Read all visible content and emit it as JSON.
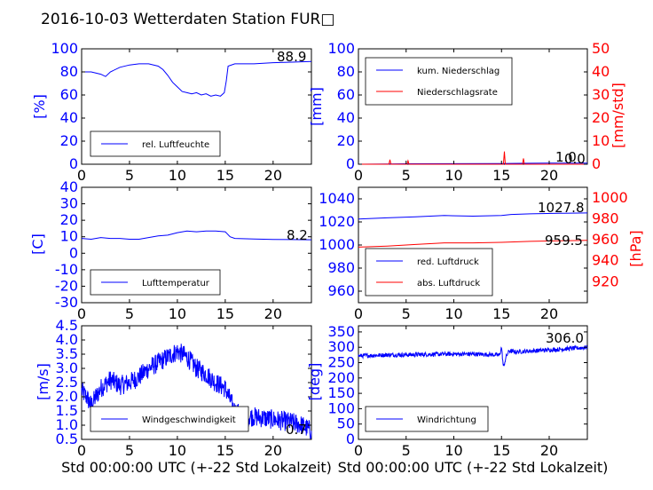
{
  "title": "2016-10-03 Wetterdaten Station FUR□",
  "colors": {
    "primary": "#0000ff",
    "secondary": "#ff0000"
  },
  "chart_data": [
    {
      "id": "humidity",
      "type": "line",
      "ylabel": "[%]",
      "ylim": [
        0,
        100
      ],
      "yticks": [
        0,
        20,
        40,
        60,
        80,
        100
      ],
      "xlim": [
        0,
        24
      ],
      "xticks": [
        0,
        5,
        10,
        15,
        20
      ],
      "last_value": "88.9",
      "series": [
        {
          "name": "rel. Luftfeuchte",
          "color": "#0000ff",
          "x": [
            0,
            1,
            2,
            2.5,
            3,
            4,
            5,
            6,
            7,
            8,
            8.5,
            9,
            9.5,
            10,
            10.5,
            11,
            11.5,
            12,
            12.5,
            13,
            13.5,
            14,
            14.5,
            14.9,
            15.1,
            15.3,
            16,
            18,
            20,
            22,
            24
          ],
          "y": [
            80,
            80,
            78,
            76,
            80,
            84,
            86,
            87,
            87,
            85,
            82,
            77,
            71,
            67,
            63,
            62,
            61,
            62,
            60,
            61,
            59,
            60,
            59,
            62,
            72,
            85,
            87,
            87,
            88,
            88.5,
            89
          ]
        }
      ]
    },
    {
      "id": "precipitation",
      "type": "line",
      "ylabel": "[mm]",
      "ylabel_right": "[mm/std]",
      "ylim": [
        0,
        100
      ],
      "ylim_right": [
        0,
        50
      ],
      "yticks": [
        0,
        20,
        40,
        60,
        80,
        100
      ],
      "yticks_right": [
        0,
        10,
        20,
        30,
        40,
        50
      ],
      "xlim": [
        0,
        24
      ],
      "xticks": [
        0,
        5,
        10,
        15,
        20
      ],
      "last_value": "1.0",
      "last_value_right": "0.0",
      "series": [
        {
          "name": "kum. Niederschlag",
          "color": "#0000ff",
          "axis": "left",
          "x": [
            0,
            3,
            5,
            15,
            17,
            20,
            24
          ],
          "y": [
            0,
            0.2,
            0.4,
            0.6,
            0.8,
            1.0,
            1.0
          ]
        },
        {
          "name": "Niederschlagsrate",
          "color": "#ff0000",
          "axis": "right",
          "x": [
            0,
            3.2,
            3.3,
            3.4,
            5.1,
            5.2,
            5.3,
            15.2,
            15.3,
            15.4,
            17.2,
            17.3,
            17.4,
            24
          ],
          "y": [
            0,
            0,
            2,
            0,
            0,
            1.5,
            0,
            0,
            5.5,
            0,
            0,
            2.5,
            0,
            0
          ]
        }
      ]
    },
    {
      "id": "temperature",
      "type": "line",
      "ylabel": "[C]",
      "ylim": [
        -30,
        40
      ],
      "yticks": [
        -30,
        -20,
        -10,
        0,
        10,
        20,
        30,
        40
      ],
      "xlim": [
        0,
        24
      ],
      "xticks": [
        0,
        5,
        10,
        15,
        20
      ],
      "last_value": "8.2",
      "series": [
        {
          "name": "Lufttemperatur",
          "color": "#0000ff",
          "x": [
            0,
            1,
            2,
            3,
            4,
            5,
            6,
            7,
            8,
            9,
            10,
            11,
            12,
            13,
            14,
            15,
            15.5,
            16,
            18,
            20,
            22,
            24
          ],
          "y": [
            9,
            8.5,
            9.5,
            9,
            9,
            8.5,
            8.5,
            9.5,
            10.5,
            11,
            12.5,
            13.5,
            13,
            13.5,
            13.5,
            13,
            10,
            9,
            8.6,
            8.4,
            8.3,
            8.2
          ]
        }
      ]
    },
    {
      "id": "pressure",
      "type": "line",
      "ylabel_right": "[hPa]",
      "ylim": [
        950,
        1050
      ],
      "ylim_right": [
        900,
        1010
      ],
      "yticks": [
        960,
        980,
        1000,
        1020,
        1040
      ],
      "yticks_right": [
        920,
        940,
        960,
        980,
        1000
      ],
      "xlim": [
        0,
        24
      ],
      "xticks": [
        0,
        5,
        10,
        15,
        20
      ],
      "last_value": "1027.8",
      "last_value_right": "959.5",
      "series": [
        {
          "name": "red. Luftdruck",
          "color": "#0000ff",
          "axis": "left",
          "x": [
            0,
            3,
            6,
            9,
            12,
            15,
            16,
            18,
            21,
            24
          ],
          "y": [
            1022.5,
            1023.5,
            1024.5,
            1025.5,
            1025,
            1025.5,
            1026.5,
            1027,
            1027.5,
            1027.8
          ]
        },
        {
          "name": "abs. Luftdruck",
          "color": "#ff0000",
          "axis": "right",
          "x": [
            0,
            3,
            6,
            9,
            12,
            15,
            18,
            21,
            24
          ],
          "y": [
            953,
            954,
            955.5,
            957,
            957,
            957.5,
            958.5,
            959,
            959.5
          ]
        }
      ]
    },
    {
      "id": "windspeed",
      "type": "line",
      "ylabel": "[m/s]",
      "xlabel": "Std 00:00:00 UTC (+-22 Std Lokalzeit)",
      "ylim": [
        0.5,
        4.5
      ],
      "yticks": [
        0.5,
        1.0,
        1.5,
        2.0,
        2.5,
        3.0,
        3.5,
        4.0,
        4.5
      ],
      "xlim": [
        0,
        24
      ],
      "xticks": [
        0,
        5,
        10,
        15,
        20
      ],
      "last_value": "0.7",
      "noise": 0.35,
      "series": [
        {
          "name": "Windgeschwindigkeit",
          "color": "#0000ff",
          "x": [
            0,
            0.5,
            1,
            2,
            3,
            4,
            5,
            6,
            7,
            8,
            9,
            10,
            11,
            12,
            13,
            14,
            15,
            16,
            17,
            18,
            20,
            22,
            23,
            24
          ],
          "y": [
            2.2,
            2.0,
            1.7,
            2.3,
            2.6,
            2.4,
            2.5,
            2.7,
            3.0,
            3.2,
            3.4,
            3.6,
            3.4,
            3.0,
            2.8,
            2.5,
            2.3,
            1.5,
            1.3,
            1.3,
            1.2,
            1.1,
            1.0,
            0.8
          ]
        }
      ]
    },
    {
      "id": "winddirection",
      "type": "line",
      "ylabel": "[deg]",
      "xlabel": "Std 00:00:00 UTC (+-22 Std Lokalzeit)",
      "ylim": [
        0,
        370
      ],
      "yticks": [
        0,
        50,
        100,
        150,
        200,
        250,
        300,
        350
      ],
      "xlim": [
        0,
        24
      ],
      "xticks": [
        0,
        5,
        10,
        15,
        20
      ],
      "last_value": "306.0",
      "noise": 7,
      "series": [
        {
          "name": "Windrichtung",
          "color": "#0000ff",
          "x": [
            0,
            3,
            6,
            9,
            12,
            14.8,
            15.0,
            15.2,
            15.5,
            15.8,
            16.5,
            18,
            21,
            24
          ],
          "y": [
            272,
            275,
            276,
            278,
            278,
            275,
            300,
            235,
            270,
            288,
            285,
            288,
            293,
            300
          ]
        }
      ]
    }
  ]
}
